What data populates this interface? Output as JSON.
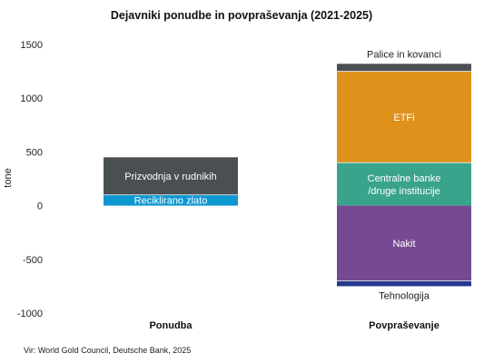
{
  "chart_data": {
    "type": "bar",
    "title": "Dejavniki ponudbe in povpraševanja (2021-2025)",
    "ylabel": "tone",
    "ylim": [
      -1000,
      1500
    ],
    "yticks": [
      1500,
      1000,
      500,
      0,
      -500,
      -1000
    ],
    "grid": false,
    "categories": [
      "Ponudba",
      "Povpraševanje"
    ],
    "stacks": [
      {
        "category": "Ponudba",
        "segments": [
          {
            "label": "Reciklirano zlato",
            "from": 0,
            "to": 100,
            "color": "#0d97d0",
            "text_color": "#ffffff",
            "label_position": "inside"
          },
          {
            "label": "Prizvodnja v rudnikih",
            "from": 100,
            "to": 450,
            "color": "#4a4f52",
            "text_color": "#ffffff",
            "label_position": "inside"
          }
        ]
      },
      {
        "category": "Povpraševanje",
        "segments": [
          {
            "label": "Centralne banke\n/druge institucije",
            "from": 0,
            "to": 400,
            "color": "#3aa38b",
            "text_color": "#ffffff",
            "label_position": "inside"
          },
          {
            "label": "ETFi",
            "from": 400,
            "to": 1250,
            "color": "#de921c",
            "text_color": "#ffffff",
            "label_position": "inside"
          },
          {
            "label": "Palice in kovanci",
            "from": 1250,
            "to": 1320,
            "color": "#4a4f52",
            "text_color": "#222222",
            "label_position": "above"
          },
          {
            "label": "Nakit",
            "from": 0,
            "to": -700,
            "color": "#764a93",
            "text_color": "#ffffff",
            "label_position": "inside"
          },
          {
            "label": "Tehnologija",
            "from": -700,
            "to": -750,
            "color": "#253a8e",
            "text_color": "#222222",
            "label_position": "below"
          }
        ]
      }
    ],
    "source": "Vir: World Gold Council, Deutsche Bank, 2025"
  }
}
